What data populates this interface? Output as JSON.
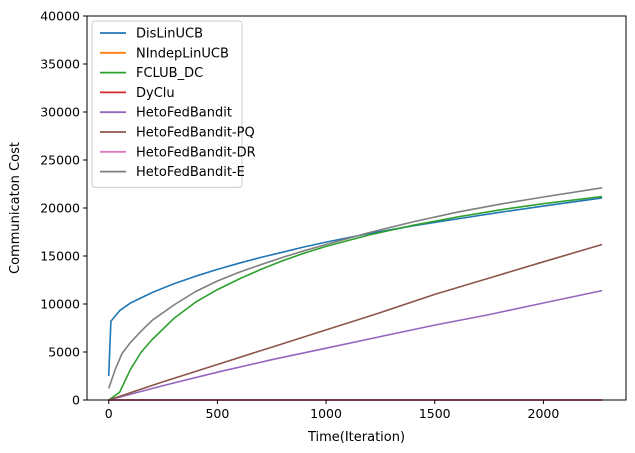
{
  "chart_data": {
    "type": "line",
    "title": "",
    "xlabel": "Time(Iteration)",
    "ylabel": "Communicaton Cost",
    "xlim": [
      -100,
      2380
    ],
    "ylim": [
      0,
      40000
    ],
    "xticks": [
      0,
      500,
      1000,
      1500,
      2000
    ],
    "yticks": [
      0,
      5000,
      10000,
      15000,
      20000,
      25000,
      30000,
      35000,
      40000
    ],
    "grid": false,
    "legend_position": "top-left",
    "series": [
      {
        "name": "DisLinUCB",
        "color": "#1f77b4",
        "points": [
          [
            0,
            2500
          ],
          [
            10,
            8200
          ],
          [
            50,
            9300
          ],
          [
            100,
            10100
          ],
          [
            200,
            11200
          ],
          [
            300,
            12100
          ],
          [
            400,
            12900
          ],
          [
            500,
            13600
          ],
          [
            600,
            14250
          ],
          [
            700,
            14850
          ],
          [
            800,
            15400
          ],
          [
            900,
            15950
          ],
          [
            1000,
            16450
          ],
          [
            1200,
            17350
          ],
          [
            1400,
            18150
          ],
          [
            1600,
            18850
          ],
          [
            1800,
            19550
          ],
          [
            2000,
            20200
          ],
          [
            2270,
            21050
          ]
        ]
      },
      {
        "name": "NIndepLinUCB",
        "color": "#ff7f0e",
        "points": [
          [
            0,
            0
          ],
          [
            2270,
            0
          ]
        ]
      },
      {
        "name": "FCLUB_DC",
        "color": "#2ca02c",
        "points": [
          [
            0,
            0
          ],
          [
            50,
            800
          ],
          [
            100,
            3200
          ],
          [
            150,
            5000
          ],
          [
            200,
            6300
          ],
          [
            300,
            8500
          ],
          [
            400,
            10200
          ],
          [
            500,
            11500
          ],
          [
            600,
            12600
          ],
          [
            700,
            13600
          ],
          [
            800,
            14500
          ],
          [
            900,
            15300
          ],
          [
            1000,
            16000
          ],
          [
            1200,
            17200
          ],
          [
            1400,
            18200
          ],
          [
            1600,
            19050
          ],
          [
            1800,
            19800
          ],
          [
            2000,
            20450
          ],
          [
            2270,
            21200
          ]
        ]
      },
      {
        "name": "DyClu",
        "color": "#d62728",
        "points": [
          [
            0,
            0
          ],
          [
            2270,
            0
          ]
        ]
      },
      {
        "name": "HetoFedBandit",
        "color": "#9467bd",
        "points": [
          [
            0,
            0
          ],
          [
            250,
            1500
          ],
          [
            500,
            2900
          ],
          [
            750,
            4200
          ],
          [
            1000,
            5400
          ],
          [
            1250,
            6600
          ],
          [
            1500,
            7800
          ],
          [
            1750,
            8900
          ],
          [
            2000,
            10100
          ],
          [
            2270,
            11400
          ]
        ]
      },
      {
        "name": "HetoFedBandit-PQ",
        "color": "#8c564b",
        "points": [
          [
            0,
            0
          ],
          [
            250,
            1900
          ],
          [
            500,
            3700
          ],
          [
            750,
            5500
          ],
          [
            1000,
            7300
          ],
          [
            1250,
            9100
          ],
          [
            1500,
            11000
          ],
          [
            1750,
            12700
          ],
          [
            2000,
            14400
          ],
          [
            2270,
            16200
          ]
        ]
      },
      {
        "name": "HetoFedBandit-DR",
        "color": "#e377c2",
        "points": [
          [
            0,
            0
          ],
          [
            2270,
            0
          ]
        ]
      },
      {
        "name": "HetoFedBandit-E",
        "color": "#7f7f7f",
        "points": [
          [
            0,
            1200
          ],
          [
            30,
            3200
          ],
          [
            60,
            4800
          ],
          [
            100,
            6000
          ],
          [
            150,
            7200
          ],
          [
            200,
            8300
          ],
          [
            300,
            9900
          ],
          [
            400,
            11300
          ],
          [
            500,
            12400
          ],
          [
            600,
            13300
          ],
          [
            700,
            14100
          ],
          [
            800,
            14850
          ],
          [
            900,
            15550
          ],
          [
            1000,
            16200
          ],
          [
            1200,
            17450
          ],
          [
            1400,
            18550
          ],
          [
            1600,
            19550
          ],
          [
            1800,
            20400
          ],
          [
            2000,
            21150
          ],
          [
            2270,
            22100
          ]
        ]
      }
    ]
  }
}
